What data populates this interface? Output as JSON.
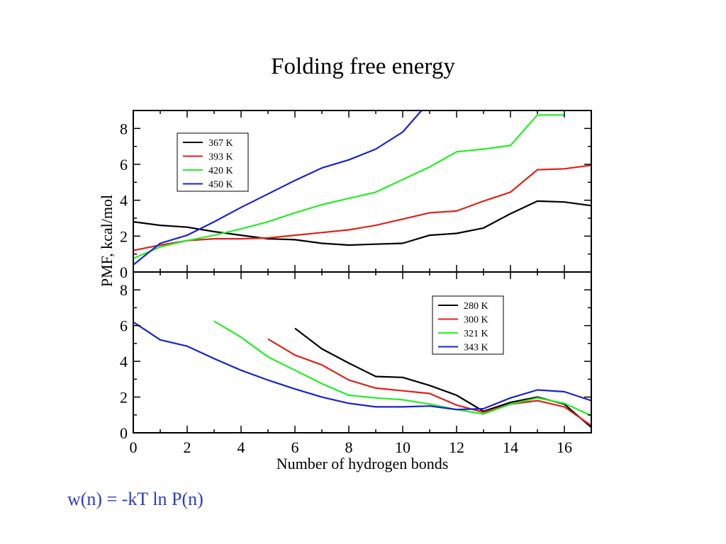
{
  "slide": {
    "title": "Folding free energy",
    "formula": "w(n) = -kT ln P(n)"
  },
  "chart_data": [
    {
      "type": "line",
      "panel": "top",
      "xlim": [
        0,
        17
      ],
      "ylim": [
        0,
        9
      ],
      "xticks": [
        0,
        2,
        4,
        6,
        8,
        10,
        12,
        14,
        16
      ],
      "yticks": [
        0,
        2,
        4,
        6,
        8
      ],
      "ylabel": "PMF, kcal/mol",
      "legend_position": "top-left",
      "series": [
        {
          "name": "367 K",
          "color": "#000000",
          "x": [
            0,
            1,
            2,
            3,
            4,
            5,
            6,
            7,
            8,
            9,
            10,
            11,
            12,
            13,
            14,
            15,
            16,
            17
          ],
          "y": [
            2.8,
            2.6,
            2.5,
            2.25,
            2.05,
            1.85,
            1.8,
            1.6,
            1.5,
            1.55,
            1.6,
            2.05,
            2.15,
            2.45,
            3.25,
            3.95,
            3.9,
            3.7
          ]
        },
        {
          "name": "393 K",
          "color": "#e0201a",
          "x": [
            0,
            1,
            2,
            3,
            4,
            5,
            6,
            7,
            8,
            9,
            10,
            11,
            12,
            13,
            14,
            15,
            16,
            17
          ],
          "y": [
            1.2,
            1.5,
            1.75,
            1.85,
            1.85,
            1.9,
            2.05,
            2.2,
            2.35,
            2.6,
            2.95,
            3.3,
            3.4,
            3.95,
            4.45,
            5.7,
            5.75,
            5.95
          ]
        },
        {
          "name": "420 K",
          "color": "#22ee22",
          "x": [
            0,
            1,
            2,
            3,
            4,
            5,
            6,
            7,
            8,
            9,
            10,
            11,
            12,
            13,
            14,
            15,
            16
          ],
          "y": [
            0.75,
            1.4,
            1.75,
            2.05,
            2.4,
            2.8,
            3.3,
            3.75,
            4.1,
            4.45,
            5.15,
            5.85,
            6.7,
            6.85,
            7.05,
            8.75,
            8.75
          ]
        },
        {
          "name": "450 K",
          "color": "#1a22cc",
          "x": [
            0,
            1,
            2,
            3,
            4,
            5,
            6,
            7,
            8,
            9,
            10,
            10.7
          ],
          "y": [
            0.4,
            1.6,
            2.05,
            2.8,
            3.6,
            4.35,
            5.1,
            5.8,
            6.25,
            6.85,
            7.8,
            9.0
          ]
        }
      ]
    },
    {
      "type": "line",
      "panel": "bottom",
      "xlim": [
        0,
        17
      ],
      "ylim": [
        0,
        9
      ],
      "xticks": [
        0,
        2,
        4,
        6,
        8,
        10,
        12,
        14,
        16
      ],
      "yticks": [
        0,
        2,
        4,
        6,
        8
      ],
      "xlabel": "Number of hydrogen bonds",
      "legend_position": "top-right",
      "series": [
        {
          "name": "280 K",
          "color": "#000000",
          "x": [
            6,
            7,
            8,
            9,
            10,
            11,
            12,
            13,
            14,
            15,
            16,
            17
          ],
          "y": [
            5.85,
            4.7,
            3.9,
            3.15,
            3.1,
            2.65,
            2.1,
            1.2,
            1.7,
            2.0,
            1.6,
            0.3
          ]
        },
        {
          "name": "300 K",
          "color": "#e0201a",
          "x": [
            5,
            6,
            7,
            8,
            9,
            10,
            11,
            12,
            13,
            14,
            15,
            16,
            17
          ],
          "y": [
            5.25,
            4.35,
            3.8,
            2.95,
            2.5,
            2.35,
            2.2,
            1.55,
            1.15,
            1.6,
            1.8,
            1.45,
            0.4
          ]
        },
        {
          "name": "321 K",
          "color": "#22ee22",
          "x": [
            3,
            4,
            5,
            6,
            7,
            8,
            9,
            10,
            11,
            12,
            13,
            14,
            15,
            16,
            17
          ],
          "y": [
            6.25,
            5.35,
            4.25,
            3.5,
            2.75,
            2.1,
            1.95,
            1.85,
            1.6,
            1.3,
            1.05,
            1.6,
            1.95,
            1.65,
            0.95
          ]
        },
        {
          "name": "343 K",
          "color": "#1a22cc",
          "x": [
            0,
            1,
            2,
            3,
            4,
            5,
            6,
            7,
            8,
            9,
            10,
            11,
            12,
            13,
            14,
            15,
            16,
            17
          ],
          "y": [
            6.2,
            5.2,
            4.85,
            4.15,
            3.5,
            2.95,
            2.45,
            2.0,
            1.65,
            1.45,
            1.45,
            1.5,
            1.3,
            1.35,
            1.95,
            2.4,
            2.3,
            1.8
          ]
        }
      ]
    }
  ]
}
